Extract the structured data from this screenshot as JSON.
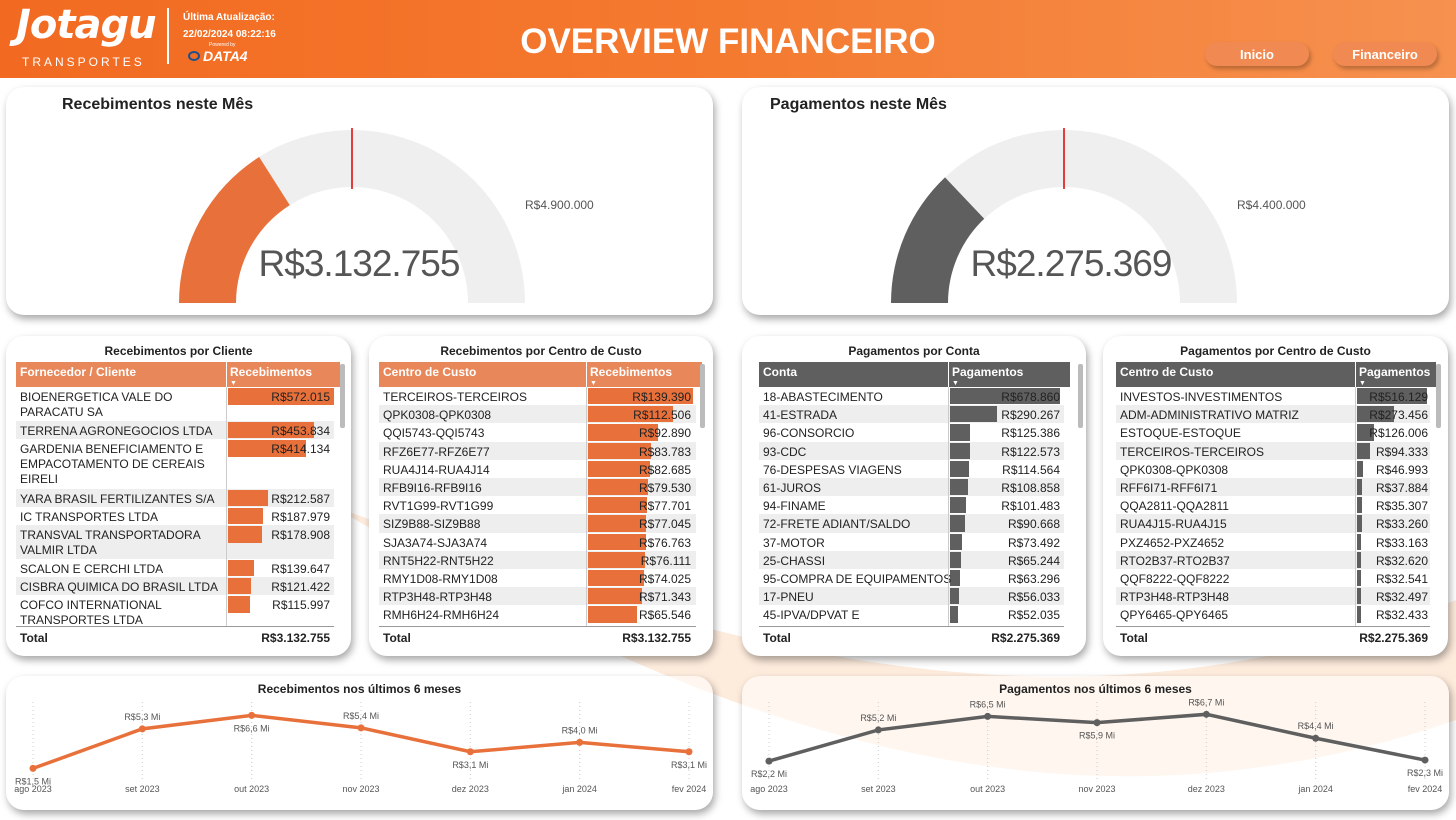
{
  "header": {
    "logo": "Jotagu",
    "logo_sub": "TRANSPORTES",
    "update_label": "Última Atualização:",
    "update_date": "22/02/2024 08:22:16",
    "powered_by": "Powered by",
    "data4": "DATA4",
    "title": "OVERVIEW FINANCEIRO",
    "nav": [
      {
        "label": "Inicio"
      },
      {
        "label": "Financeiro"
      }
    ]
  },
  "colors": {
    "orange": "#e8703a",
    "dark": "#5f5f5f",
    "gauge_bg": "#f0efef",
    "target": "#e00000"
  },
  "gauges": [
    {
      "title": "Recebimentos neste Mês",
      "value_label": "R$3.132.755",
      "value": 3132755,
      "max": 9800000,
      "target_label": "R$4.900.000",
      "target": 4900000
    },
    {
      "title": "Pagamentos neste Mês",
      "value_label": "R$2.275.369",
      "value": 2275369,
      "max": 8800000,
      "target_label": "R$4.400.000",
      "target": 4400000
    }
  ],
  "tables": [
    {
      "title": "Recebimentos por Cliente",
      "col1": "Fornecedor / Cliente",
      "col2": "Recebimentos",
      "max": 572015,
      "rows": [
        {
          "name": "BIOENERGETICA VALE DO PARACATU SA",
          "label": "R$572.015",
          "value": 572015
        },
        {
          "name": "TERRENA AGRONEGOCIOS LTDA",
          "label": "R$453.834",
          "value": 453834
        },
        {
          "name": "GARDENIA BENEFICIAMENTO E EMPACOTAMENTO DE CEREAIS EIRELI",
          "label": "R$414.134",
          "value": 414134
        },
        {
          "name": "YARA BRASIL FERTILIZANTES S/A",
          "label": "R$212.587",
          "value": 212587
        },
        {
          "name": "IC TRANSPORTES LTDA",
          "label": "R$187.979",
          "value": 187979
        },
        {
          "name": "TRANSVAL TRANSPORTADORA VALMIR LTDA",
          "label": "R$178.908",
          "value": 178908
        },
        {
          "name": "SCALON E CERCHI LTDA",
          "label": "R$139.647",
          "value": 139647
        },
        {
          "name": "CISBRA QUIMICA DO BRASIL LTDA",
          "label": "R$121.422",
          "value": 121422
        },
        {
          "name": "COFCO INTERNATIONAL TRANSPORTES LTDA",
          "label": "R$115.997",
          "value": 115997
        }
      ],
      "total_label": "Total",
      "total": "R$3.132.755"
    },
    {
      "title": "Recebimentos por Centro de Custo",
      "col1": "Centro de Custo",
      "col2": "Recebimentos",
      "max": 139390,
      "rows": [
        {
          "name": "TERCEIROS-TERCEIROS",
          "label": "R$139.390",
          "value": 139390
        },
        {
          "name": "QPK0308-QPK0308",
          "label": "R$112.506",
          "value": 112506
        },
        {
          "name": "QQI5743-QQI5743",
          "label": "R$92.890",
          "value": 92890
        },
        {
          "name": "RFZ6E77-RFZ6E77",
          "label": "R$83.783",
          "value": 83783
        },
        {
          "name": "RUA4J14-RUA4J14",
          "label": "R$82.685",
          "value": 82685
        },
        {
          "name": "RFB9I16-RFB9I16",
          "label": "R$79.530",
          "value": 79530
        },
        {
          "name": "RVT1G99-RVT1G99",
          "label": "R$77.701",
          "value": 77701
        },
        {
          "name": "SIZ9B88-SIZ9B88",
          "label": "R$77.045",
          "value": 77045
        },
        {
          "name": "SJA3A74-SJA3A74",
          "label": "R$76.763",
          "value": 76763
        },
        {
          "name": "RNT5H22-RNT5H22",
          "label": "R$76.111",
          "value": 76111
        },
        {
          "name": "RMY1D08-RMY1D08",
          "label": "R$74.025",
          "value": 74025
        },
        {
          "name": "RTP3H48-RTP3H48",
          "label": "R$71.343",
          "value": 71343
        },
        {
          "name": "RMH6H24-RMH6H24",
          "label": "R$65.546",
          "value": 65546
        }
      ],
      "total_label": "Total",
      "total": "R$3.132.755"
    },
    {
      "title": "Pagamentos por Conta",
      "col1": "Conta",
      "col2": "Pagamentos",
      "max": 678860,
      "rows": [
        {
          "name": "18-ABASTECIMENTO",
          "label": "R$678.860",
          "value": 678860
        },
        {
          "name": "41-ESTRADA",
          "label": "R$290.267",
          "value": 290267
        },
        {
          "name": "96-CONSORCIO",
          "label": "R$125.386",
          "value": 125386
        },
        {
          "name": "93-CDC",
          "label": "R$122.573",
          "value": 122573
        },
        {
          "name": "76-DESPESAS VIAGENS",
          "label": "R$114.564",
          "value": 114564
        },
        {
          "name": "61-JUROS",
          "label": "R$108.858",
          "value": 108858
        },
        {
          "name": "94-FINAME",
          "label": "R$101.483",
          "value": 101483
        },
        {
          "name": "72-FRETE ADIANT/SALDO",
          "label": "R$90.668",
          "value": 90668
        },
        {
          "name": "37-MOTOR",
          "label": "R$73.492",
          "value": 73492
        },
        {
          "name": "25-CHASSI",
          "label": "R$65.244",
          "value": 65244
        },
        {
          "name": "95-COMPRA DE EQUIPAMENTOS",
          "label": "R$63.296",
          "value": 63296
        },
        {
          "name": "17-PNEU",
          "label": "R$56.033",
          "value": 56033
        },
        {
          "name": "45-IPVA/DPVAT E",
          "label": "R$52.035",
          "value": 52035
        }
      ],
      "total_label": "Total",
      "total": "R$2.275.369"
    },
    {
      "title": "Pagamentos por Centro de Custo",
      "col1": "Centro de Custo",
      "col2": "Pagamentos",
      "max": 516129,
      "rows": [
        {
          "name": "INVESTOS-INVESTIMENTOS",
          "label": "R$516.129",
          "value": 516129
        },
        {
          "name": "ADM-ADMINISTRATIVO MATRIZ",
          "label": "R$273.456",
          "value": 273456
        },
        {
          "name": "ESTOQUE-ESTOQUE",
          "label": "R$126.006",
          "value": 126006
        },
        {
          "name": "TERCEIROS-TERCEIROS",
          "label": "R$94.333",
          "value": 94333
        },
        {
          "name": "QPK0308-QPK0308",
          "label": "R$46.993",
          "value": 46993
        },
        {
          "name": "RFF6I71-RFF6I71",
          "label": "R$37.884",
          "value": 37884
        },
        {
          "name": "QQA2811-QQA2811",
          "label": "R$35.307",
          "value": 35307
        },
        {
          "name": "RUA4J15-RUA4J15",
          "label": "R$33.260",
          "value": 33260
        },
        {
          "name": "PXZ4652-PXZ4652",
          "label": "R$33.163",
          "value": 33163
        },
        {
          "name": "RTO2B37-RTO2B37",
          "label": "R$32.620",
          "value": 32620
        },
        {
          "name": "QQF8222-QQF8222",
          "label": "R$32.541",
          "value": 32541
        },
        {
          "name": "RTP3H48-RTP3H48",
          "label": "R$32.497",
          "value": 32497
        },
        {
          "name": "QPY6465-QPY6465",
          "label": "R$32.433",
          "value": 32433
        }
      ],
      "total_label": "Total",
      "total": "R$2.275.369"
    }
  ],
  "chart_data": [
    {
      "type": "line",
      "title": "Recebimentos nos últimos 6 meses",
      "categories": [
        "ago 2023",
        "set 2023",
        "out 2023",
        "nov 2023",
        "dez 2023",
        "jan 2024",
        "fev 2024"
      ],
      "values": [
        1.5,
        5.3,
        6.6,
        5.4,
        3.1,
        4.0,
        3.1
      ],
      "labels": [
        "R$1,5 Mi",
        "R$5,3 Mi",
        "R$6,6 Mi",
        "R$5,4 Mi",
        "R$3,1 Mi",
        "R$4,0 Mi",
        "R$3,1 Mi"
      ],
      "unit": "Mi",
      "ylim": [
        0,
        7.5
      ],
      "color": "#e8703a"
    },
    {
      "type": "line",
      "title": "Pagamentos nos últimos 6 meses",
      "categories": [
        "ago 2023",
        "set 2023",
        "out 2023",
        "nov 2023",
        "dez 2023",
        "jan 2024",
        "fev 2024"
      ],
      "values": [
        2.2,
        5.2,
        6.5,
        5.9,
        6.7,
        4.4,
        2.3
      ],
      "labels": [
        "R$2,2 Mi",
        "R$5,2 Mi",
        "R$6,5 Mi",
        "R$5,9 Mi",
        "R$6,7 Mi",
        "R$4,4 Mi",
        "R$2,3 Mi"
      ],
      "unit": "Mi",
      "ylim": [
        0,
        7.5
      ],
      "color": "#5f5f5f"
    }
  ]
}
